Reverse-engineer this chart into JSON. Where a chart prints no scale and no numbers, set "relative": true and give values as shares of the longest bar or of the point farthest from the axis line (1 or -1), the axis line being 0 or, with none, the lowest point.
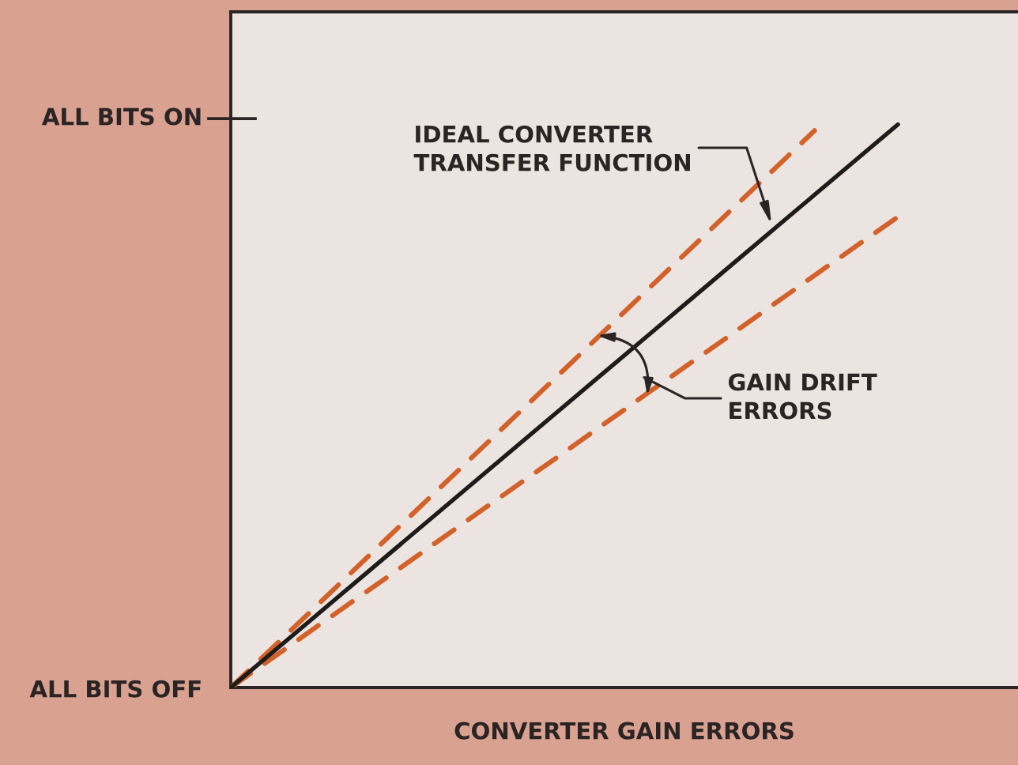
{
  "chart_data": {
    "type": "line",
    "relative": true,
    "xlabel": "CONVERTER GAIN ERRORS",
    "categories": [
      null,
      null,
      null,
      null,
      null,
      null,
      null,
      null,
      null
    ],
    "series": [
      {
        "color": "#d2622a",
        "line_style": "dashed",
        "values": [
          0,
          0.141,
          0.283,
          0.424,
          0.565,
          0.707,
          0.848,
          0.989,
          null
        ]
      },
      {
        "color": "#d2622a",
        "line_style": "dashed",
        "values": [
          0,
          0.105,
          0.209,
          0.314,
          0.418,
          0.523,
          0.627,
          0.732,
          0.836
        ]
      },
      {
        "color": "#1e1b1b",
        "line_style": "solid",
        "values": [
          0,
          0.125,
          0.25,
          0.375,
          0.5,
          0.625,
          0.75,
          0.875,
          1.0
        ]
      }
    ],
    "annotations": [
      "ALL BITS ON",
      "ALL BITS OFF",
      "IDEAL CONVERTER\nTRANSFER FUNCTION",
      "GAIN DRIFT\nERRORS"
    ]
  }
}
